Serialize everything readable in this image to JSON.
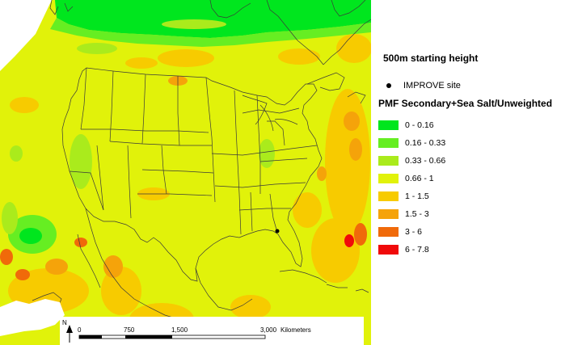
{
  "map": {
    "starting_height": "500m starting height",
    "site_legend_label": "IMPROVE site",
    "legend_heading": "PMF Secondary+Sea Salt/Unweighted",
    "classes": [
      {
        "label": "0 - 0.16",
        "color": "#00e61e"
      },
      {
        "label": "0.16 - 0.33",
        "color": "#66ee22"
      },
      {
        "label": "0.33 - 0.66",
        "color": "#aaeb1c"
      },
      {
        "label": "0.66 - 1",
        "color": "#e1f20a"
      },
      {
        "label": "1 - 1.5",
        "color": "#f7cb00"
      },
      {
        "label": "1.5 - 3",
        "color": "#f5a30a"
      },
      {
        "label": "3 - 6",
        "color": "#f06a0a"
      },
      {
        "label": "6 - 7.8",
        "color": "#f00a0a"
      }
    ],
    "scale_bar": {
      "ticks": [
        "0",
        "750",
        "1,500",
        "3,000"
      ],
      "unit": "Kilometers"
    },
    "north_label": "N"
  }
}
